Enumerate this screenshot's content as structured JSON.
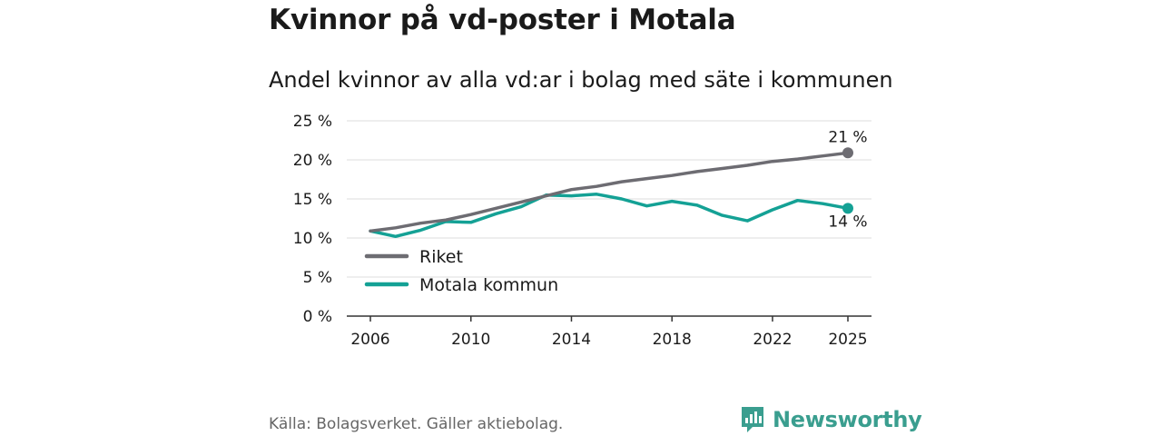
{
  "title": "Kvinnor på vd-poster i Motala",
  "subtitle": "Andel kvinnor av alla vd:ar i bolag med säte i kommunen",
  "source": "Källa: Bolagsverket. Gäller aktiebolag.",
  "brand": {
    "name": "Newsworthy",
    "color": "#3a9e8f"
  },
  "chart_data": {
    "type": "line",
    "title": "Kvinnor på vd-poster i Motala",
    "subtitle": "Andel kvinnor av alla vd:ar i bolag med säte i kommunen",
    "xlabel": "",
    "ylabel": "",
    "ylim": [
      0,
      25
    ],
    "xlim": [
      2006,
      2025
    ],
    "grid": true,
    "legend_position": "bottom-left",
    "y_ticks": [
      0,
      5,
      10,
      15,
      20,
      25
    ],
    "y_tick_labels": [
      "0 %",
      "5 %",
      "10 %",
      "15 %",
      "20 %",
      "25 %"
    ],
    "x_ticks": [
      2006,
      2010,
      2014,
      2018,
      2022,
      2025
    ],
    "x_tick_labels": [
      "2006",
      "2010",
      "2014",
      "2018",
      "2022",
      "2025"
    ],
    "x": [
      2006,
      2007,
      2008,
      2009,
      2010,
      2011,
      2012,
      2013,
      2014,
      2015,
      2016,
      2017,
      2018,
      2019,
      2020,
      2021,
      2022,
      2023,
      2024,
      2025
    ],
    "series": [
      {
        "name": "Riket",
        "color": "#6d6c72",
        "values": [
          10.9,
          11.3,
          11.9,
          12.3,
          13.0,
          13.8,
          14.6,
          15.4,
          16.2,
          16.6,
          17.2,
          17.6,
          18.0,
          18.5,
          18.9,
          19.3,
          19.8,
          20.1,
          20.5,
          20.9
        ],
        "end_label": "21 %"
      },
      {
        "name": "Motala kommun",
        "color": "#14a195",
        "values": [
          10.9,
          10.2,
          11.0,
          12.1,
          12.0,
          13.1,
          14.0,
          15.5,
          15.4,
          15.6,
          15.0,
          14.1,
          14.7,
          14.2,
          12.9,
          12.2,
          13.6,
          14.8,
          14.4,
          13.8
        ],
        "end_label": "14 %"
      }
    ]
  }
}
